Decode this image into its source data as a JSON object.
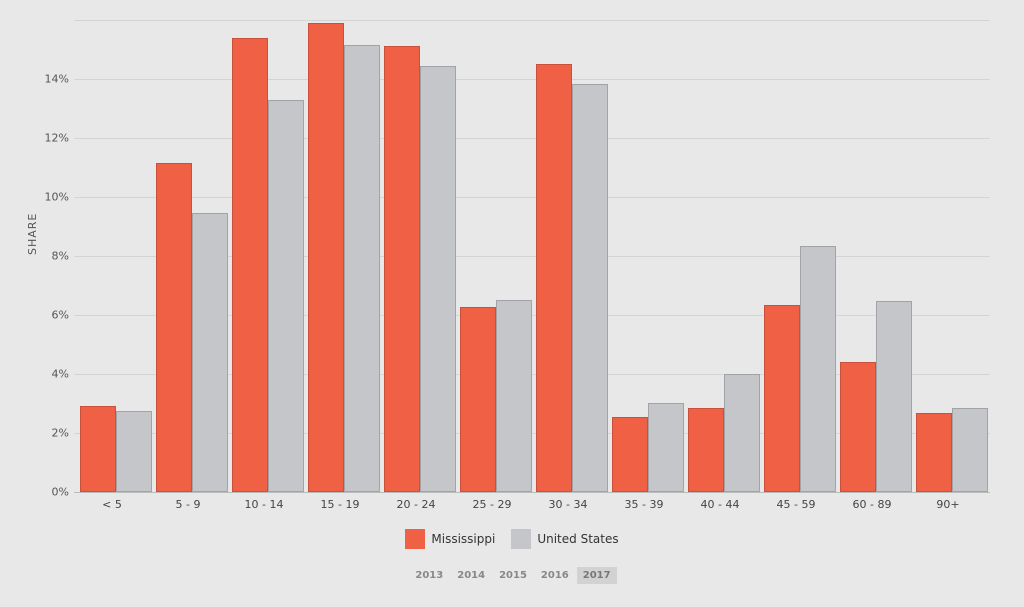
{
  "chart_data": {
    "type": "bar",
    "title": "",
    "xlabel": "",
    "ylabel": "SHARE",
    "ylim": [
      0,
      16
    ],
    "y_ticks": [
      "0%",
      "2%",
      "4%",
      "6%",
      "8%",
      "10%",
      "12%",
      "14%"
    ],
    "grid": true,
    "legend_position": "bottom",
    "categories": [
      "< 5",
      "5 - 9",
      "10 - 14",
      "15 - 19",
      "20 - 24",
      "25 - 29",
      "30 - 34",
      "35 - 39",
      "40 - 44",
      "45 - 59",
      "60 - 89",
      "90+"
    ],
    "series": [
      {
        "name": "Mississippi",
        "color": "#ef6045",
        "values": [
          2.92,
          11.15,
          15.39,
          15.9,
          15.12,
          6.27,
          14.5,
          2.54,
          2.85,
          6.34,
          4.41,
          2.68
        ]
      },
      {
        "name": "United States",
        "color": "#c5c6c9",
        "values": [
          2.75,
          9.46,
          13.29,
          15.15,
          14.44,
          6.51,
          13.83,
          3.02,
          4.0,
          8.34,
          6.47,
          2.85
        ]
      }
    ]
  },
  "legend": {
    "items": [
      {
        "label": "Mississippi",
        "color": "#ef6045"
      },
      {
        "label": "United States",
        "color": "#c5c6c9"
      }
    ]
  },
  "years": {
    "options": [
      "2013",
      "2014",
      "2015",
      "2016",
      "2017"
    ],
    "selected": "2017"
  }
}
